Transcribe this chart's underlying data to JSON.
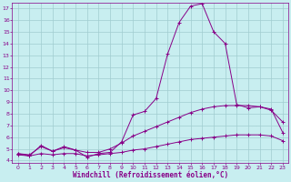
{
  "title": "",
  "xlabel": "Windchill (Refroidissement éolien,°C)",
  "ylabel": "",
  "xlim": [
    -0.5,
    23.5
  ],
  "ylim": [
    3.8,
    17.5
  ],
  "yticks": [
    4,
    5,
    6,
    7,
    8,
    9,
    10,
    11,
    12,
    13,
    14,
    15,
    16,
    17
  ],
  "xticks": [
    0,
    1,
    2,
    3,
    4,
    5,
    6,
    7,
    8,
    9,
    10,
    11,
    12,
    13,
    14,
    15,
    16,
    17,
    18,
    19,
    20,
    21,
    22,
    23
  ],
  "background_color": "#c8eef0",
  "grid_color": "#a0ccd0",
  "line_color": "#880088",
  "line1_x": [
    0,
    1,
    2,
    3,
    4,
    5,
    6,
    7,
    8,
    9,
    10,
    11,
    12,
    13,
    14,
    15,
    16,
    17,
    18,
    19,
    20,
    21,
    22,
    23
  ],
  "line1_y": [
    4.6,
    4.4,
    5.3,
    4.8,
    5.1,
    4.9,
    4.3,
    4.6,
    4.7,
    5.6,
    7.9,
    8.2,
    9.3,
    13.1,
    15.8,
    17.2,
    17.4,
    15.0,
    14.0,
    8.8,
    8.5,
    8.6,
    8.3,
    7.3
  ],
  "line2_x": [
    0,
    1,
    2,
    3,
    4,
    5,
    6,
    7,
    8,
    9,
    10,
    11,
    12,
    13,
    14,
    15,
    16,
    17,
    18,
    19,
    20,
    21,
    22,
    23
  ],
  "line2_y": [
    4.6,
    4.5,
    5.2,
    4.8,
    5.2,
    4.9,
    4.7,
    4.7,
    5.0,
    5.5,
    6.1,
    6.5,
    6.9,
    7.3,
    7.7,
    8.1,
    8.4,
    8.6,
    8.7,
    8.7,
    8.7,
    8.6,
    8.4,
    6.4
  ],
  "line3_x": [
    0,
    1,
    2,
    3,
    4,
    5,
    6,
    7,
    8,
    9,
    10,
    11,
    12,
    13,
    14,
    15,
    16,
    17,
    18,
    19,
    20,
    21,
    22,
    23
  ],
  "line3_y": [
    4.5,
    4.4,
    4.6,
    4.5,
    4.6,
    4.6,
    4.4,
    4.5,
    4.6,
    4.7,
    4.9,
    5.0,
    5.2,
    5.4,
    5.6,
    5.8,
    5.9,
    6.0,
    6.1,
    6.2,
    6.2,
    6.2,
    6.1,
    5.7
  ],
  "font_color": "#880088",
  "tick_fontsize": 4.5,
  "label_fontsize": 5.5
}
